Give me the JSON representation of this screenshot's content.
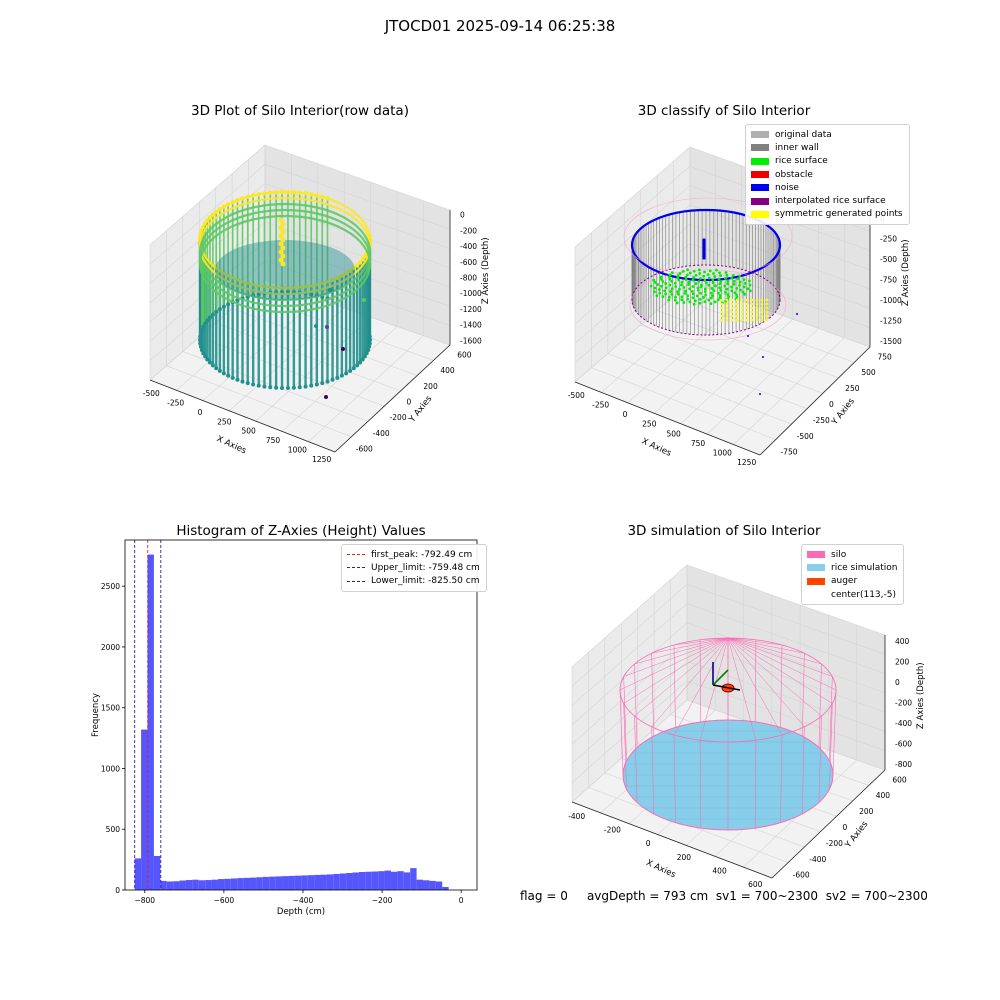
{
  "figure": {
    "suptitle": "JTOCD01 2025-09-14 06:25:38",
    "footer": {
      "flag": "flag = 0",
      "avg_depth": "avgDepth = 793 cm",
      "sv1": "sv1 = 700~2300",
      "sv2": "sv2 = 700~2300"
    }
  },
  "chart_data": [
    {
      "type": "scatter",
      "title": "3D Plot of Silo Interior(row data)",
      "xlabel": "X Axies",
      "ylabel": "Y Axies",
      "zlabel": "Z Axies (Depth)",
      "x_ticks": [
        "-500",
        "-250",
        "0",
        "250",
        "500",
        "750",
        "1000",
        "1250"
      ],
      "y_ticks": [
        "-600",
        "-400",
        "-200",
        "0",
        "200",
        "400",
        "600"
      ],
      "z_ticks": [
        "0",
        "-200",
        "-400",
        "-600",
        "-800",
        "-1000",
        "-1200",
        "-1400",
        "-1600"
      ],
      "colormap": "viridis",
      "colors": [
        "#440154",
        "#3b528b",
        "#21908d",
        "#5dc963",
        "#fde725"
      ]
    },
    {
      "type": "scatter",
      "title": "3D classify of Silo Interior",
      "xlabel": "X Axies",
      "ylabel": "Y Axies",
      "zlabel": "Z Axies (Depth)",
      "x_ticks": [
        "-500",
        "-250",
        "0",
        "250",
        "500",
        "750",
        "1000",
        "1250"
      ],
      "y_ticks": [
        "-750",
        "-500",
        "-250",
        "0",
        "250",
        "500",
        "750"
      ],
      "z_ticks": [
        "0",
        "-250",
        "-500",
        "-750",
        "-1000",
        "-1250",
        "-1500"
      ],
      "legend": [
        {
          "name": "original data",
          "color": "#b0b0b0"
        },
        {
          "name": "inner wall",
          "color": "#808080"
        },
        {
          "name": "rice surface",
          "color": "#00ee00"
        },
        {
          "name": "obstacle",
          "color": "#ee0000"
        },
        {
          "name": "noise",
          "color": "#0000ee"
        },
        {
          "name": "interpolated rice surface",
          "color": "#800080"
        },
        {
          "name": "symmetric generated points",
          "color": "#ffff00"
        }
      ],
      "legend_position": "top-right"
    },
    {
      "type": "bar",
      "title": "Histogram of Z-Axies (Height) Values",
      "xlabel": "Depth (cm)",
      "ylabel": "Frequency",
      "xlim": [
        -850,
        40
      ],
      "ylim": [
        0,
        2880
      ],
      "x_ticks": [
        -800,
        -600,
        -400,
        -200,
        0
      ],
      "y_ticks": [
        0,
        500,
        1000,
        1500,
        2000,
        2500
      ],
      "bar_color": "#4d4dff",
      "bin_width": 16.2,
      "bin_start": -825.5,
      "values": [
        260,
        1320,
        2760,
        280,
        75,
        70,
        72,
        78,
        82,
        85,
        80,
        82,
        85,
        90,
        92,
        95,
        98,
        100,
        102,
        105,
        108,
        110,
        112,
        114,
        116,
        118,
        120,
        122,
        124,
        126,
        128,
        132,
        136,
        140,
        144,
        148,
        150,
        152,
        155,
        160,
        150,
        155,
        145,
        180,
        85,
        80,
        75,
        70,
        25
      ],
      "vlines": [
        {
          "name": "first_peak: -792.49 cm",
          "x": -792.49,
          "color": "#dd2222"
        },
        {
          "name": "Upper_limit: -759.48 cm",
          "x": -759.48,
          "color": "#2222aa"
        },
        {
          "name": "Lower_limit: -825.50 cm",
          "x": -825.5,
          "color": "#2222aa"
        }
      ],
      "legend_position": "top-right"
    },
    {
      "type": "scatter",
      "title": "3D simulation of Silo Interior",
      "xlabel": "X Axies",
      "ylabel": "Y Axies",
      "zlabel": "Z Axies (Depth)",
      "x_ticks": [
        "-400",
        "-200",
        "0",
        "200",
        "400",
        "600"
      ],
      "y_ticks": [
        "-600",
        "-400",
        "-200",
        "0",
        "200",
        "400",
        "600"
      ],
      "z_ticks": [
        "400",
        "200",
        "0",
        "-200",
        "-400",
        "-600",
        "-800"
      ],
      "legend": [
        {
          "name": "silo",
          "color": "#ff69b4"
        },
        {
          "name": "rice simulation",
          "color": "#87ceeb"
        },
        {
          "name": "auger",
          "color": "#ff4500"
        },
        {
          "name": "center(113,-5)",
          "color": ""
        }
      ],
      "legend_position": "top-right"
    }
  ]
}
